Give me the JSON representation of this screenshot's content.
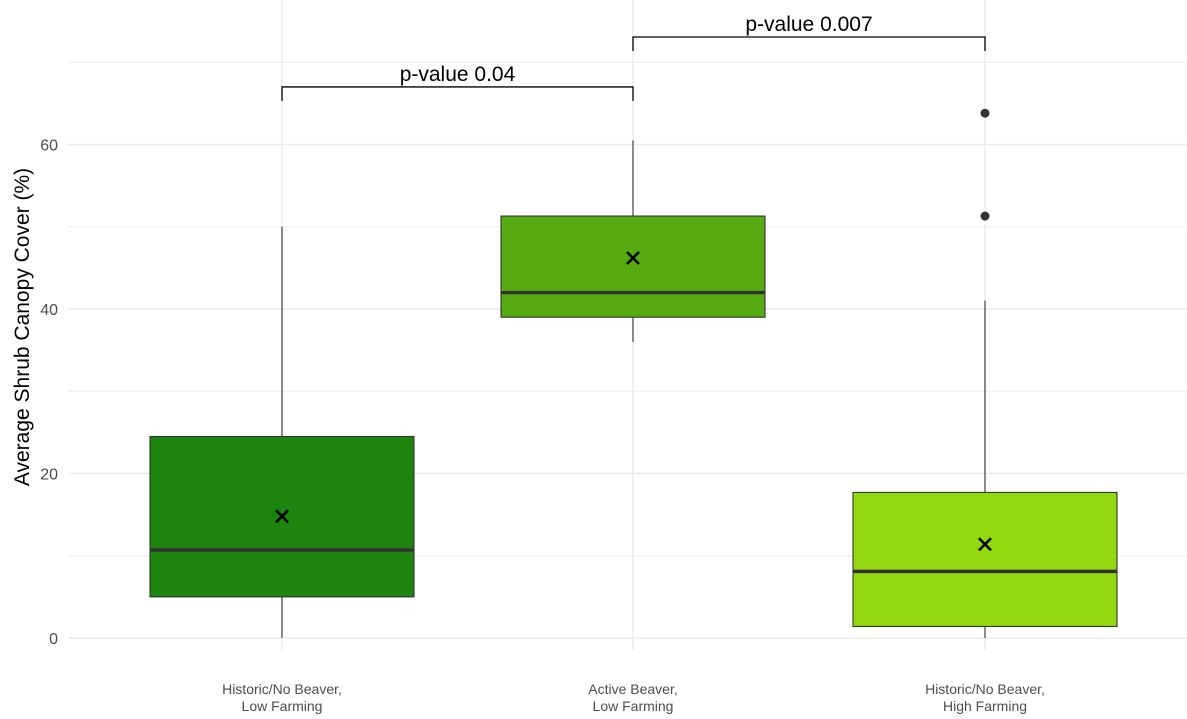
{
  "chart_data": {
    "type": "box",
    "ylabel": "Average Shrub Canopy Cover (%)",
    "xlabel": "",
    "ylim": [
      0,
      72
    ],
    "yticks": [
      0,
      20,
      40,
      60
    ],
    "grid": true,
    "categories": [
      [
        "Historic/No Beaver,",
        "Low Farming"
      ],
      [
        "Active Beaver,",
        "Low Farming"
      ],
      [
        "Historic/No Beaver,",
        "High Farming"
      ]
    ],
    "boxes": [
      {
        "min": 0,
        "q1": 5,
        "median": 10.7,
        "q3": 24.5,
        "max": 50,
        "mean": 14.8,
        "outliers": [],
        "color": "#1b8510"
      },
      {
        "min": 36,
        "q1": 39,
        "median": 42,
        "q3": 51.3,
        "max": 60.5,
        "mean": 46.2,
        "outliers": [],
        "color": "#56ab10"
      },
      {
        "min": 0,
        "q1": 1.4,
        "median": 8.1,
        "q3": 17.7,
        "max": 41,
        "mean": 11.4,
        "outliers": [
          51.3,
          63.8
        ],
        "color": "#93d70e"
      }
    ],
    "comparisons": [
      {
        "from": 0,
        "to": 1,
        "y": 67,
        "label": "p-value 0.04"
      },
      {
        "from": 1,
        "to": 2,
        "y": 73.3,
        "label": "p-value 0.007"
      }
    ],
    "mean_marker": "x"
  }
}
